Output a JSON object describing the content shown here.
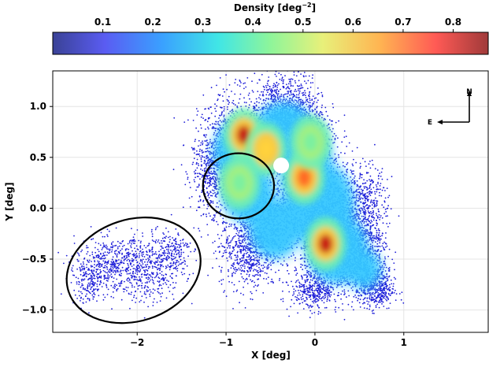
{
  "chart_data": {
    "type": "scatter",
    "title": "",
    "xlabel": "X [deg]",
    "ylabel": "Y [deg]",
    "xlim": [
      -2.95,
      1.95
    ],
    "ylim": [
      -1.22,
      1.35
    ],
    "xticks": [
      -2,
      -1,
      0,
      1
    ],
    "xtick_labels": [
      "−2",
      "−1",
      "0",
      "1"
    ],
    "yticks": [
      -1.0,
      -0.5,
      0.0,
      0.5,
      1.0
    ],
    "ytick_labels": [
      "−1.0",
      "−0.5",
      "0.0",
      "0.5",
      "1.0"
    ],
    "grid": true,
    "colorbar": {
      "label": "Density [deg",
      "label_exp": "−2",
      "label_close": "]",
      "range": [
        0.0,
        0.87
      ],
      "ticks": [
        0.1,
        0.2,
        0.3,
        0.4,
        0.5,
        0.6,
        0.7,
        0.8
      ],
      "tick_labels": [
        "0.1",
        "0.2",
        "0.3",
        "0.4",
        "0.5",
        "0.6",
        "0.7",
        "0.8"
      ],
      "colormap": "jet"
    },
    "compass": {
      "north": "N",
      "east": "E"
    },
    "density_clumps": [
      {
        "x": -0.8,
        "y": 0.72,
        "peak": 0.85
      },
      {
        "x": -0.55,
        "y": 0.58,
        "peak": 0.6
      },
      {
        "x": -0.12,
        "y": 0.3,
        "peak": 0.78
      },
      {
        "x": 0.12,
        "y": -0.35,
        "peak": 0.84
      },
      {
        "x": -0.85,
        "y": 0.25,
        "peak": 0.42
      },
      {
        "x": -0.05,
        "y": 0.65,
        "peak": 0.4
      }
    ],
    "ellipses": [
      {
        "cx": -2.04,
        "cy": -0.61,
        "rx": 0.77,
        "ry": 0.5,
        "angle_deg": 18
      },
      {
        "cx": -0.86,
        "cy": 0.22,
        "rx": 0.4,
        "ry": 0.32,
        "angle_deg": 0
      }
    ]
  }
}
